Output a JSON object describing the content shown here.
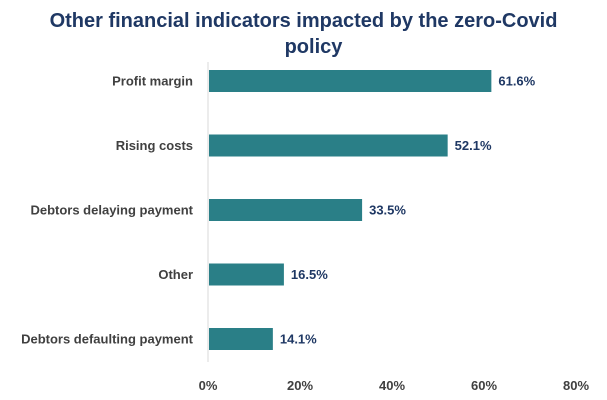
{
  "chart_data": {
    "type": "bar",
    "orientation": "horizontal",
    "title_lines": [
      "Other financial indicators impacted by the zero-Covid",
      "policy"
    ],
    "categories": [
      "Profit margin",
      "Rising costs",
      "Debtors delaying payment",
      "Other",
      "Debtors defaulting payment"
    ],
    "values": [
      61.6,
      52.1,
      33.5,
      16.5,
      14.1
    ],
    "value_labels": [
      "61.6%",
      "52.1%",
      "33.5%",
      "16.5%",
      "14.1%"
    ],
    "x_ticks": [
      0,
      20,
      40,
      60,
      80
    ],
    "x_tick_labels": [
      "0%",
      "20%",
      "40%",
      "60%",
      "80%"
    ],
    "xlim": [
      0,
      80
    ],
    "grid": false,
    "legend": "none",
    "bar_color": "#2a7f87",
    "label_color": "#404040",
    "value_color": "#1f3864",
    "axis_color": "#d9d9d9"
  }
}
